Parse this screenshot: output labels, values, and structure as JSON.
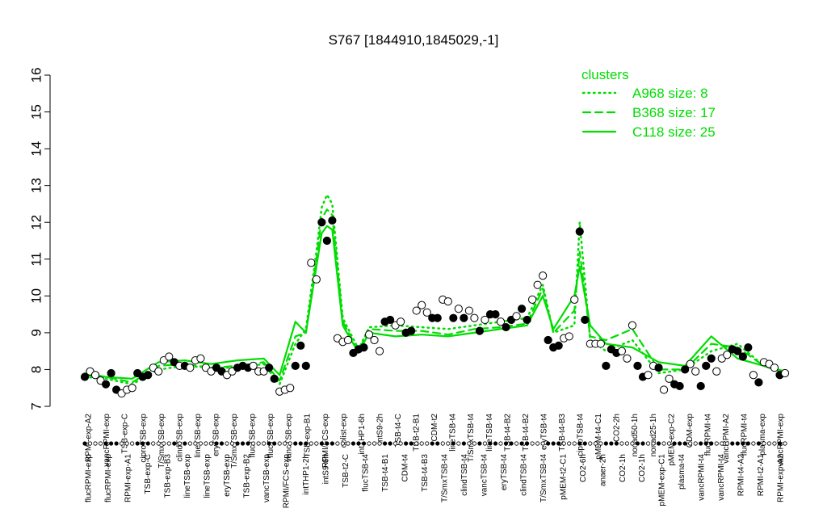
{
  "chart_data": {
    "type": "line",
    "title": "S767 [1844910,1845029,-1]",
    "ylim": [
      7,
      16
    ],
    "yticks": [
      7,
      8,
      9,
      10,
      11,
      12,
      13,
      14,
      15,
      16
    ],
    "grid": false,
    "legend": {
      "title": "clusters",
      "placement": "top-right",
      "entries": [
        "A968 size: 8",
        "B368 size: 17",
        "C118 size: 25"
      ]
    },
    "colors": {
      "accent": "#00dd00",
      "point_fill": "#ffffff",
      "point_dark": "#000000"
    },
    "categories_top": [
      "RPMI-exp-A2",
      "vancRPMI-exp",
      "TSB-exp-C",
      "ciproTSB-exp",
      "T/SmxTSB-exp",
      "clindTSB-exp",
      "lineTSB-exp",
      "eryTSB-exp",
      "T/SmxTSB-exp",
      "flucTSB-exp",
      "flucTSB-exp",
      "vancTSB-exp",
      "TSB-exp-B1",
      "RPMI/FCS-exp",
      "colist-exp",
      "intTHP1-6h",
      "intS9-2h",
      "TSB-t4-C",
      "TSB-t2-B1",
      "CDM-t2",
      "lineTSB-t4",
      "T/SmxTSB-t4",
      "lineTSB-t4",
      "TSB-t4-B2",
      "TSB-t4-B2",
      "eryTSB-t4",
      "TSB-t4-B3",
      "ciproTSB-t4",
      "pMEM-t4-C1",
      "CO2-2h",
      "nonad50-1h",
      "nonad25-1h",
      "pMEM-exp-C2",
      "CDM-exp",
      "flucRPMI-t4",
      "vancRPMI-A2",
      "flucRPMI-t4",
      "plasma-exp",
      "vancRPMI-exp"
    ],
    "categories_bottom": [
      "flucRPMI-exp",
      "flucRPMI-exp",
      "RPMI-exp-A1",
      "TSB-exp-C",
      "TSB-exp-B3",
      "lineTSB-exp",
      "lineTSB-exp",
      "eryTSB-exp",
      "TSB-exp-B2",
      "vancTSB-exp",
      "RPMI/FCS-exp",
      "intTHP1-2h",
      "intS9-6h",
      "TSB-t2-C",
      "flucTSB-t4",
      "TSB-t4-B1",
      "CDM-t4",
      "TSB-t4-B3",
      "T/SmxTSB-t4",
      "clindTSB-t4",
      "vancTSB-t4",
      "eryTSB-t4",
      "clindTSB-t4",
      "T/SmxTSB-t4",
      "pMEM-t2-C1",
      "CO2-6h",
      "anaer-2h",
      "CO2-1h",
      "CO2-1h",
      "pMEM-exp-C1",
      "plasma-t4",
      "vancRPMI-t4",
      "vancRPMI-t4",
      "RPMI-t4-A2",
      "RPMI-t2-A1",
      "RPMI-exp-A2"
    ],
    "points": [
      {
        "x": 1,
        "y": 7.8,
        "fill": "dark"
      },
      {
        "x": 2,
        "y": 7.95,
        "fill": "light"
      },
      {
        "x": 3,
        "y": 7.85,
        "fill": "light"
      },
      {
        "x": 4,
        "y": 7.7,
        "fill": "light"
      },
      {
        "x": 5,
        "y": 7.6,
        "fill": "dark"
      },
      {
        "x": 6,
        "y": 7.9,
        "fill": "dark"
      },
      {
        "x": 7,
        "y": 7.45,
        "fill": "dark"
      },
      {
        "x": 8,
        "y": 7.35,
        "fill": "light"
      },
      {
        "x": 9,
        "y": 7.45,
        "fill": "light"
      },
      {
        "x": 10,
        "y": 7.5,
        "fill": "light"
      },
      {
        "x": 11,
        "y": 7.9,
        "fill": "dark"
      },
      {
        "x": 12,
        "y": 7.8,
        "fill": "dark"
      },
      {
        "x": 13,
        "y": 7.85,
        "fill": "dark"
      },
      {
        "x": 14,
        "y": 8.05,
        "fill": "light"
      },
      {
        "x": 15,
        "y": 7.95,
        "fill": "light"
      },
      {
        "x": 16,
        "y": 8.25,
        "fill": "light"
      },
      {
        "x": 17,
        "y": 8.35,
        "fill": "light"
      },
      {
        "x": 18,
        "y": 8.2,
        "fill": "dark"
      },
      {
        "x": 19,
        "y": 8.1,
        "fill": "light"
      },
      {
        "x": 20,
        "y": 8.1,
        "fill": "dark"
      },
      {
        "x": 21,
        "y": 8.05,
        "fill": "light"
      },
      {
        "x": 22,
        "y": 8.25,
        "fill": "light"
      },
      {
        "x": 23,
        "y": 8.3,
        "fill": "light"
      },
      {
        "x": 24,
        "y": 8.05,
        "fill": "light"
      },
      {
        "x": 25,
        "y": 7.95,
        "fill": "light"
      },
      {
        "x": 26,
        "y": 8.05,
        "fill": "dark"
      },
      {
        "x": 27,
        "y": 7.95,
        "fill": "dark"
      },
      {
        "x": 28,
        "y": 7.85,
        "fill": "light"
      },
      {
        "x": 29,
        "y": 7.95,
        "fill": "light"
      },
      {
        "x": 30,
        "y": 8.05,
        "fill": "dark"
      },
      {
        "x": 31,
        "y": 8.1,
        "fill": "dark"
      },
      {
        "x": 32,
        "y": 8.05,
        "fill": "dark"
      },
      {
        "x": 33,
        "y": 8.1,
        "fill": "light"
      },
      {
        "x": 34,
        "y": 7.95,
        "fill": "light"
      },
      {
        "x": 35,
        "y": 7.95,
        "fill": "light"
      },
      {
        "x": 36,
        "y": 8.05,
        "fill": "dark"
      },
      {
        "x": 37,
        "y": 7.75,
        "fill": "dark"
      },
      {
        "x": 38,
        "y": 7.4,
        "fill": "light"
      },
      {
        "x": 39,
        "y": 7.45,
        "fill": "light"
      },
      {
        "x": 40,
        "y": 7.5,
        "fill": "light"
      },
      {
        "x": 41,
        "y": 8.1,
        "fill": "dark"
      },
      {
        "x": 42,
        "y": 8.65,
        "fill": "dark"
      },
      {
        "x": 43,
        "y": 8.1,
        "fill": "dark"
      },
      {
        "x": 44,
        "y": 10.9,
        "fill": "light"
      },
      {
        "x": 45,
        "y": 10.45,
        "fill": "light"
      },
      {
        "x": 46,
        "y": 12.0,
        "fill": "dark"
      },
      {
        "x": 47,
        "y": 11.5,
        "fill": "dark"
      },
      {
        "x": 48,
        "y": 12.05,
        "fill": "dark"
      },
      {
        "x": 49,
        "y": 8.85,
        "fill": "light"
      },
      {
        "x": 50,
        "y": 8.75,
        "fill": "light"
      },
      {
        "x": 51,
        "y": 8.8,
        "fill": "light"
      },
      {
        "x": 52,
        "y": 8.45,
        "fill": "dark"
      },
      {
        "x": 53,
        "y": 8.55,
        "fill": "dark"
      },
      {
        "x": 54,
        "y": 8.6,
        "fill": "dark"
      },
      {
        "x": 55,
        "y": 8.95,
        "fill": "light"
      },
      {
        "x": 56,
        "y": 8.8,
        "fill": "light"
      },
      {
        "x": 57,
        "y": 8.5,
        "fill": "light"
      },
      {
        "x": 58,
        "y": 9.3,
        "fill": "dark"
      },
      {
        "x": 59,
        "y": 9.35,
        "fill": "dark"
      },
      {
        "x": 60,
        "y": 9.2,
        "fill": "light"
      },
      {
        "x": 61,
        "y": 9.3,
        "fill": "light"
      },
      {
        "x": 62,
        "y": 9.0,
        "fill": "dark"
      },
      {
        "x": 63,
        "y": 9.05,
        "fill": "dark"
      },
      {
        "x": 64,
        "y": 9.6,
        "fill": "light"
      },
      {
        "x": 65,
        "y": 9.75,
        "fill": "light"
      },
      {
        "x": 66,
        "y": 9.55,
        "fill": "light"
      },
      {
        "x": 67,
        "y": 9.4,
        "fill": "dark"
      },
      {
        "x": 68,
        "y": 9.4,
        "fill": "dark"
      },
      {
        "x": 69,
        "y": 9.9,
        "fill": "light"
      },
      {
        "x": 70,
        "y": 9.85,
        "fill": "light"
      },
      {
        "x": 71,
        "y": 9.4,
        "fill": "dark"
      },
      {
        "x": 72,
        "y": 9.65,
        "fill": "light"
      },
      {
        "x": 73,
        "y": 9.4,
        "fill": "dark"
      },
      {
        "x": 74,
        "y": 9.6,
        "fill": "light"
      },
      {
        "x": 75,
        "y": 9.4,
        "fill": "light"
      },
      {
        "x": 76,
        "y": 9.05,
        "fill": "dark"
      },
      {
        "x": 77,
        "y": 9.35,
        "fill": "light"
      },
      {
        "x": 78,
        "y": 9.5,
        "fill": "dark"
      },
      {
        "x": 79,
        "y": 9.5,
        "fill": "dark"
      },
      {
        "x": 80,
        "y": 9.3,
        "fill": "light"
      },
      {
        "x": 81,
        "y": 9.15,
        "fill": "dark"
      },
      {
        "x": 82,
        "y": 9.35,
        "fill": "dark"
      },
      {
        "x": 83,
        "y": 9.45,
        "fill": "light"
      },
      {
        "x": 84,
        "y": 9.65,
        "fill": "dark"
      },
      {
        "x": 85,
        "y": 9.35,
        "fill": "dark"
      },
      {
        "x": 86,
        "y": 9.9,
        "fill": "light"
      },
      {
        "x": 87,
        "y": 10.3,
        "fill": "light"
      },
      {
        "x": 88,
        "y": 10.55,
        "fill": "light"
      },
      {
        "x": 89,
        "y": 8.8,
        "fill": "dark"
      },
      {
        "x": 90,
        "y": 8.6,
        "fill": "dark"
      },
      {
        "x": 91,
        "y": 8.65,
        "fill": "dark"
      },
      {
        "x": 92,
        "y": 8.85,
        "fill": "light"
      },
      {
        "x": 93,
        "y": 8.9,
        "fill": "light"
      },
      {
        "x": 94,
        "y": 9.9,
        "fill": "light"
      },
      {
        "x": 95,
        "y": 11.75,
        "fill": "dark"
      },
      {
        "x": 96,
        "y": 9.35,
        "fill": "dark"
      },
      {
        "x": 97,
        "y": 8.7,
        "fill": "light"
      },
      {
        "x": 98,
        "y": 8.7,
        "fill": "light"
      },
      {
        "x": 99,
        "y": 8.7,
        "fill": "light"
      },
      {
        "x": 100,
        "y": 8.1,
        "fill": "dark"
      },
      {
        "x": 101,
        "y": 8.55,
        "fill": "dark"
      },
      {
        "x": 102,
        "y": 8.45,
        "fill": "dark"
      },
      {
        "x": 103,
        "y": 8.5,
        "fill": "light"
      },
      {
        "x": 104,
        "y": 8.3,
        "fill": "light"
      },
      {
        "x": 105,
        "y": 9.2,
        "fill": "light"
      },
      {
        "x": 106,
        "y": 8.1,
        "fill": "dark"
      },
      {
        "x": 107,
        "y": 7.8,
        "fill": "dark"
      },
      {
        "x": 108,
        "y": 7.85,
        "fill": "light"
      },
      {
        "x": 109,
        "y": 8.1,
        "fill": "light"
      },
      {
        "x": 110,
        "y": 8.05,
        "fill": "dark"
      },
      {
        "x": 111,
        "y": 7.45,
        "fill": "light"
      },
      {
        "x": 112,
        "y": 7.75,
        "fill": "light"
      },
      {
        "x": 113,
        "y": 7.6,
        "fill": "dark"
      },
      {
        "x": 114,
        "y": 7.55,
        "fill": "dark"
      },
      {
        "x": 115,
        "y": 8.0,
        "fill": "dark"
      },
      {
        "x": 116,
        "y": 8.15,
        "fill": "light"
      },
      {
        "x": 117,
        "y": 7.95,
        "fill": "light"
      },
      {
        "x": 118,
        "y": 7.55,
        "fill": "dark"
      },
      {
        "x": 119,
        "y": 8.1,
        "fill": "dark"
      },
      {
        "x": 120,
        "y": 8.3,
        "fill": "dark"
      },
      {
        "x": 121,
        "y": 7.95,
        "fill": "light"
      },
      {
        "x": 122,
        "y": 8.3,
        "fill": "light"
      },
      {
        "x": 123,
        "y": 8.4,
        "fill": "light"
      },
      {
        "x": 124,
        "y": 8.55,
        "fill": "dark"
      },
      {
        "x": 125,
        "y": 8.5,
        "fill": "dark"
      },
      {
        "x": 126,
        "y": 8.35,
        "fill": "dark"
      },
      {
        "x": 127,
        "y": 8.6,
        "fill": "dark"
      },
      {
        "x": 128,
        "y": 7.85,
        "fill": "light"
      },
      {
        "x": 129,
        "y": 7.65,
        "fill": "dark"
      },
      {
        "x": 130,
        "y": 8.2,
        "fill": "light"
      },
      {
        "x": 131,
        "y": 8.15,
        "fill": "light"
      },
      {
        "x": 132,
        "y": 8.05,
        "fill": "light"
      },
      {
        "x": 133,
        "y": 7.85,
        "fill": "dark"
      },
      {
        "x": 134,
        "y": 7.9,
        "fill": "light"
      }
    ],
    "series": [
      {
        "name": "A968 size: 8",
        "style": "dotted",
        "x": [
          1,
          5,
          10,
          15,
          20,
          25,
          30,
          35,
          38,
          41,
          43,
          45,
          46,
          47,
          48,
          50,
          53,
          55,
          60,
          65,
          70,
          75,
          80,
          85,
          88,
          90,
          94,
          95,
          97,
          100,
          105,
          110,
          115,
          120,
          125,
          130,
          134
        ],
        "values": [
          7.8,
          7.75,
          7.6,
          8.0,
          8.1,
          8.05,
          8.05,
          8.15,
          7.6,
          8.7,
          9.1,
          11.2,
          12.4,
          12.75,
          12.5,
          9.4,
          8.55,
          9.15,
          9.2,
          9.15,
          9.1,
          9.2,
          9.3,
          9.4,
          10.3,
          9.0,
          9.2,
          12.0,
          8.8,
          8.5,
          8.8,
          7.9,
          8.0,
          8.5,
          8.7,
          8.1,
          7.9
        ]
      },
      {
        "name": "B368 size: 17",
        "style": "dashed",
        "x": [
          1,
          5,
          10,
          15,
          20,
          25,
          30,
          35,
          38,
          41,
          43,
          45,
          46,
          47,
          48,
          50,
          53,
          55,
          60,
          65,
          70,
          75,
          80,
          85,
          88,
          90,
          94,
          95,
          97,
          100,
          105,
          110,
          115,
          120,
          125,
          130,
          134
        ],
        "values": [
          7.85,
          7.8,
          7.65,
          8.1,
          8.15,
          8.05,
          8.1,
          8.2,
          7.7,
          8.9,
          9.0,
          11.0,
          12.1,
          12.35,
          12.2,
          9.3,
          8.5,
          9.1,
          9.05,
          9.05,
          8.95,
          9.1,
          9.15,
          9.25,
          10.2,
          9.0,
          9.6,
          11.2,
          8.9,
          8.8,
          9.1,
          8.0,
          8.0,
          8.7,
          8.6,
          8.1,
          7.9
        ]
      },
      {
        "name": "C118 size: 25",
        "style": "solid",
        "x": [
          1,
          5,
          10,
          15,
          20,
          25,
          30,
          35,
          38,
          41,
          43,
          45,
          46,
          47,
          48,
          50,
          53,
          55,
          60,
          65,
          70,
          75,
          80,
          85,
          88,
          90,
          94,
          95,
          97,
          100,
          105,
          110,
          115,
          120,
          125,
          130,
          134
        ],
        "values": [
          7.9,
          7.8,
          7.75,
          8.2,
          8.25,
          8.15,
          8.25,
          8.3,
          7.85,
          9.3,
          9.0,
          10.8,
          11.7,
          11.9,
          11.8,
          9.2,
          8.45,
          9.0,
          8.9,
          8.95,
          8.9,
          9.0,
          9.1,
          9.2,
          10.0,
          9.1,
          10.0,
          10.8,
          9.2,
          8.7,
          8.6,
          8.2,
          8.1,
          8.9,
          8.3,
          8.1,
          7.95
        ]
      }
    ]
  }
}
